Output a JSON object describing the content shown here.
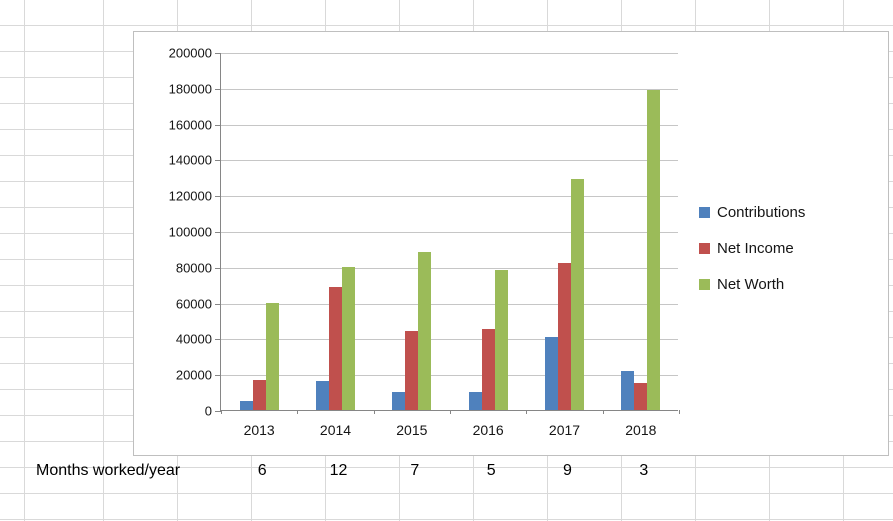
{
  "chart_data": {
    "type": "bar",
    "title": "",
    "categories": [
      "2013",
      "2014",
      "2015",
      "2016",
      "2017",
      "2018"
    ],
    "series": [
      {
        "name": "Contributions",
        "color": "#4f81bd",
        "values": [
          5000,
          16000,
          10000,
          10000,
          41000,
          22000
        ]
      },
      {
        "name": "Net Income",
        "color": "#c0504d",
        "values": [
          17000,
          69000,
          44000,
          45000,
          82000,
          15000
        ]
      },
      {
        "name": "Net Worth",
        "color": "#9bbb59",
        "values": [
          60000,
          80000,
          88000,
          78000,
          129000,
          179000
        ]
      }
    ],
    "xlabel": "",
    "ylabel": "",
    "ylim": [
      0,
      200000
    ],
    "yticks": [
      0,
      20000,
      40000,
      60000,
      80000,
      100000,
      120000,
      140000,
      160000,
      180000,
      200000
    ],
    "grid": true,
    "legend_position": "right"
  },
  "table": {
    "row_label": "Months worked/year",
    "values": [
      "6",
      "12",
      "7",
      "5",
      "9",
      "3"
    ]
  },
  "colors": {
    "gridline": "#c6c6c6",
    "axis": "#868686",
    "chart_border": "#bfbfbf",
    "sheet_gridline": "#d9d9d9"
  }
}
